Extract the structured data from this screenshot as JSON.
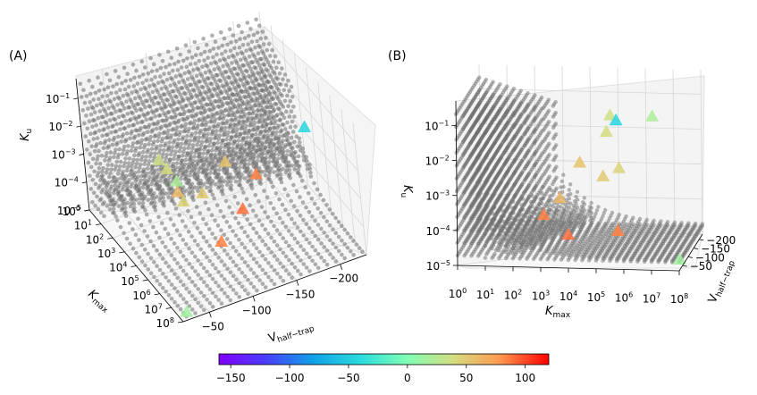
{
  "panels": [
    {
      "label": "(A)",
      "axes": {
        "x": {
          "label_main": "K",
          "label_sub": "max",
          "ticks": [
            {
              "base": "10",
              "exp": "0"
            },
            {
              "base": "10",
              "exp": "1"
            },
            {
              "base": "10",
              "exp": "2"
            },
            {
              "base": "10",
              "exp": "3"
            },
            {
              "base": "10",
              "exp": "4"
            },
            {
              "base": "10",
              "exp": "5"
            },
            {
              "base": "10",
              "exp": "6"
            },
            {
              "base": "10",
              "exp": "7"
            },
            {
              "base": "10",
              "exp": "8"
            }
          ]
        },
        "y": {
          "label_main": "V",
          "label_sub": "half−trap",
          "ticks": [
            "−50",
            "−100",
            "−150",
            "−200"
          ]
        },
        "z": {
          "label_main": "K",
          "label_sub": "u",
          "ticks": [
            {
              "base": "10",
              "exp": "−5"
            },
            {
              "base": "10",
              "exp": "−4"
            },
            {
              "base": "10",
              "exp": "−3"
            },
            {
              "base": "10",
              "exp": "−2"
            },
            {
              "base": "10",
              "exp": "−1"
            }
          ]
        }
      }
    },
    {
      "label": "(B)",
      "axes": {
        "x": {
          "label_main": "K",
          "label_sub": "max",
          "ticks": [
            {
              "base": "10",
              "exp": "0"
            },
            {
              "base": "10",
              "exp": "1"
            },
            {
              "base": "10",
              "exp": "2"
            },
            {
              "base": "10",
              "exp": "3"
            },
            {
              "base": "10",
              "exp": "4"
            },
            {
              "base": "10",
              "exp": "5"
            },
            {
              "base": "10",
              "exp": "6"
            },
            {
              "base": "10",
              "exp": "7"
            },
            {
              "base": "10",
              "exp": "8"
            }
          ]
        },
        "y": {
          "label_main": "V",
          "label_sub": "half−trap",
          "ticks": [
            "−50",
            "−100",
            "−150",
            "−200"
          ]
        },
        "z": {
          "label_main": "K",
          "label_sub": "u",
          "ticks": [
            {
              "base": "10",
              "exp": "−5"
            },
            {
              "base": "10",
              "exp": "−4"
            },
            {
              "base": "10",
              "exp": "−3"
            },
            {
              "base": "10",
              "exp": "−2"
            },
            {
              "base": "10",
              "exp": "−1"
            }
          ]
        }
      }
    }
  ],
  "colorbar": {
    "ticks": [
      "−150",
      "−100",
      "−50",
      "0",
      "50",
      "100"
    ],
    "tick_values": [
      -150,
      -100,
      -50,
      0,
      50,
      100
    ],
    "range": [
      -160,
      120
    ],
    "colormap": "rainbow"
  },
  "chart_data": {
    "type": "scatter",
    "subtype": "3d-scatter",
    "x_scale": "log",
    "z_scale": "log",
    "x_range": [
      1,
      100000000
    ],
    "y_range": [
      -20,
      -230
    ],
    "z_range": [
      1e-05,
      0.5
    ],
    "background_points": "grey sampled parameter sets",
    "background_color": "#696969",
    "triangle_marker_color": "value on colorbar",
    "triangles": [
      {
        "x": 10000000,
        "y": -40,
        "z": 0.2,
        "c": 20
      },
      {
        "x": 300000,
        "y": -40,
        "z": 0.2,
        "c": 35
      },
      {
        "x": 200000,
        "y": -50,
        "z": 0.06,
        "c": 40
      },
      {
        "x": 100000,
        "y": -210,
        "z": 0.02,
        "c": -45
      },
      {
        "x": 500000,
        "y": -60,
        "z": 0.005,
        "c": 45
      },
      {
        "x": 100000,
        "y": -90,
        "z": 0.002,
        "c": 50
      },
      {
        "x": 10000,
        "y": -130,
        "z": 0.003,
        "c": 55
      },
      {
        "x": 3000,
        "y": -80,
        "z": 0.0005,
        "c": 60
      },
      {
        "x": 300,
        "y": -180,
        "z": 5e-05,
        "c": 85
      },
      {
        "x": 3000,
        "y": -150,
        "z": 2e-05,
        "c": 90
      },
      {
        "x": 300000,
        "y": -100,
        "z": 5e-05,
        "c": 85
      },
      {
        "x": 100000000,
        "y": -25,
        "z": 2e-05,
        "c": 15
      }
    ]
  },
  "colors": {
    "grey_point": "#6e6e6e",
    "pane": "#f2f2f2",
    "grid": "#d0d0d0"
  }
}
